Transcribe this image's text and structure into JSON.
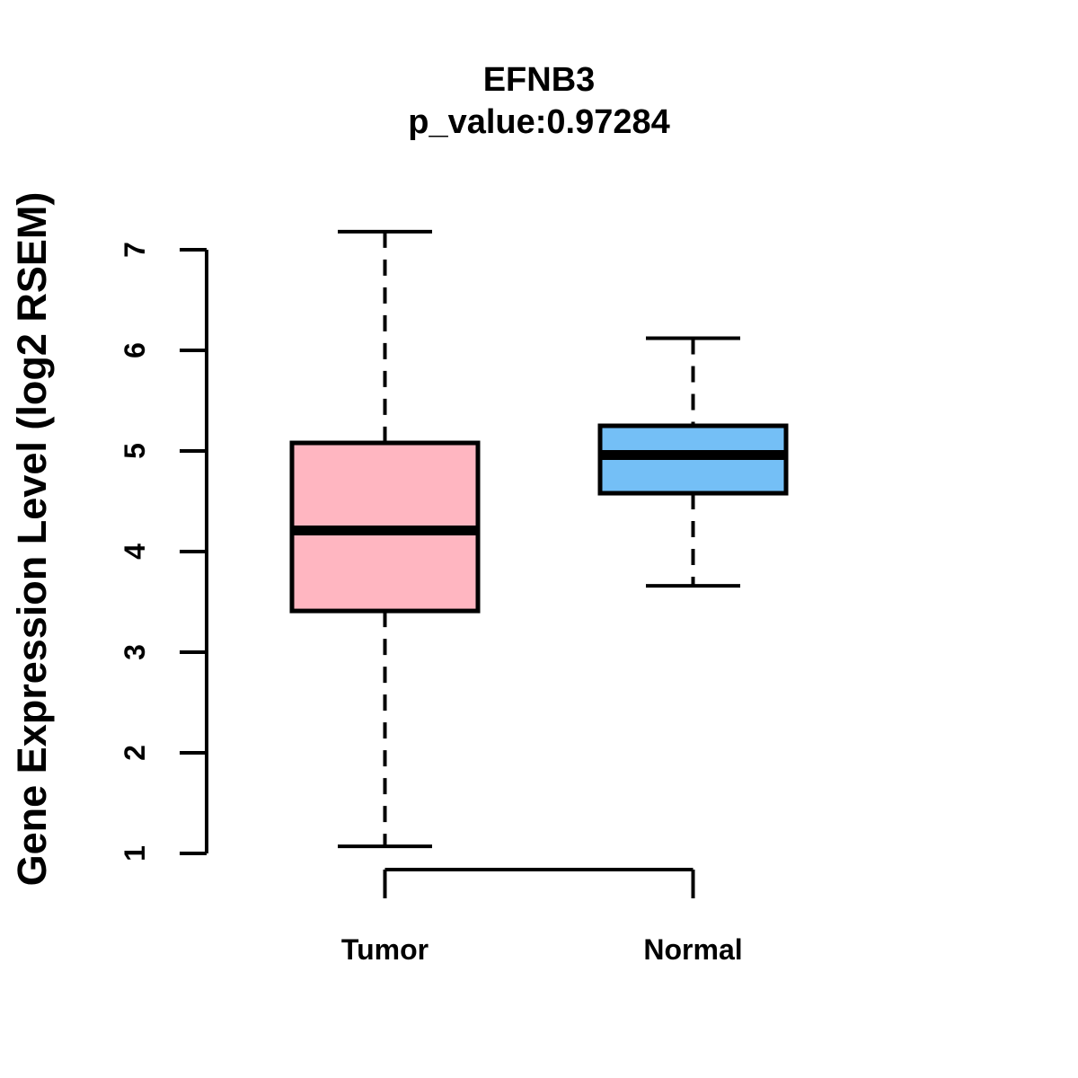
{
  "header": {
    "title": "EFNB3",
    "subtitle": "p_value:0.97284"
  },
  "y_axis": {
    "label": "Gene Expression Level (log2 RSEM)",
    "tick_values": [
      1,
      2,
      3,
      4,
      5,
      6,
      7
    ]
  },
  "x_axis": {
    "categories": [
      "Tumor",
      "Normal"
    ]
  },
  "chart_data": {
    "type": "boxplot",
    "title": "EFNB3",
    "subtitle": "p_value:0.97284",
    "xlabel": "",
    "ylabel": "Gene Expression Level (log2 RSEM)",
    "ylim": [
      1,
      7.2
    ],
    "y_ticks": [
      1,
      2,
      3,
      4,
      5,
      6,
      7
    ],
    "grid": false,
    "legend_position": "none",
    "categories": [
      "Tumor",
      "Normal"
    ],
    "series": [
      {
        "name": "Tumor",
        "fill_color": "#FFB6C1",
        "whisker_low": 1.07,
        "q1": 3.41,
        "median": 4.21,
        "q3": 5.08,
        "whisker_high": 7.18
      },
      {
        "name": "Normal",
        "fill_color": "#74BFF6",
        "whisker_low": 3.66,
        "q1": 4.58,
        "median": 4.96,
        "q3": 5.25,
        "whisker_high": 6.12
      }
    ],
    "line_color": "#000000",
    "background_color": "#ffffff"
  }
}
